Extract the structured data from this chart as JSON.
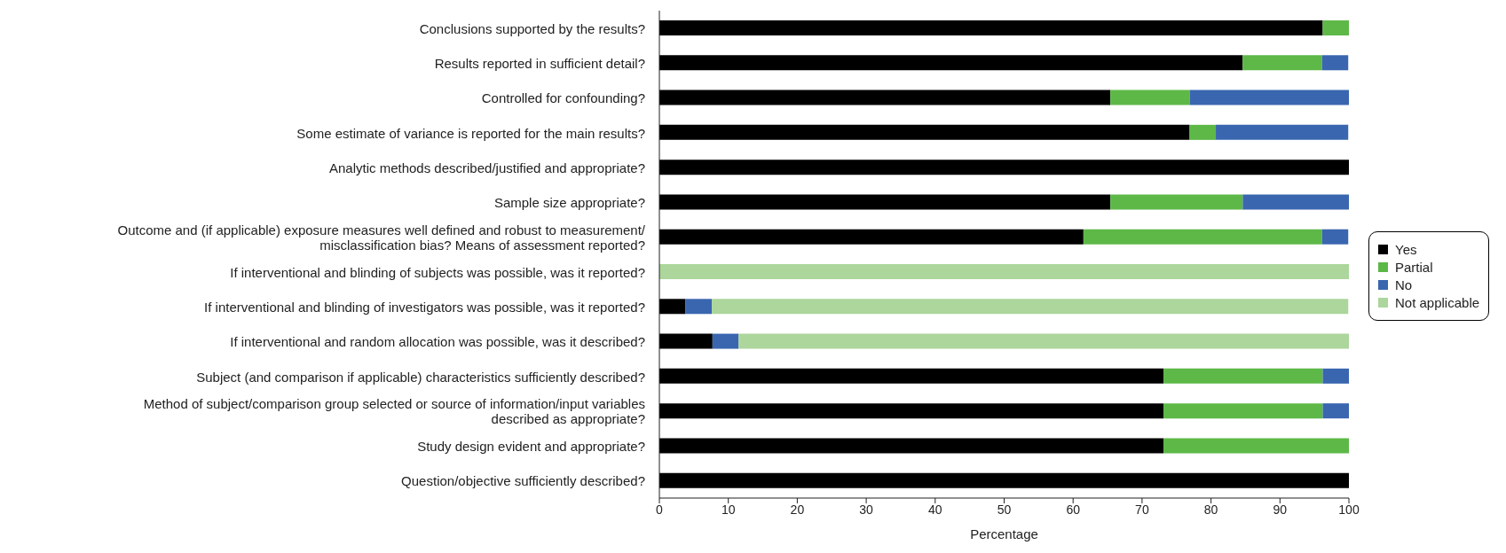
{
  "chart_data": {
    "type": "bar",
    "orientation": "horizontal",
    "stacked": true,
    "xlabel": "Percentage",
    "categories": [
      "Conclusions supported by the results?",
      "Results reported in sufficient detail?",
      "Controlled for confounding?",
      "Some estimate of variance is reported for the main results?",
      "Analytic methods described/justified and appropriate?",
      "Sample size appropriate?",
      "Outcome and (if applicable) exposure measures well defined and robust to measurement/misclassification bias? Means of assessment reported?",
      "If interventional and blinding of subjects was possible, was it reported?",
      "If interventional and blinding of investigators was possible, was it reported?",
      "If interventional and random allocation was possible, was it described?",
      "Subject (and comparison if applicable) characteristics sufficiently described?",
      "Method of subject/comparison group selected or source of information/input variables described as appropriate?",
      "Study design evident and appropriate?",
      "Question/objective sufficiently described?"
    ],
    "series": [
      {
        "name": "Yes",
        "color": "#000000",
        "values": [
          96.2,
          84.6,
          65.4,
          76.9,
          100,
          65.4,
          61.5,
          0,
          3.8,
          7.7,
          73.1,
          73.1,
          73.1,
          100
        ]
      },
      {
        "name": "Partial",
        "color": "#5db847",
        "values": [
          3.8,
          11.5,
          11.5,
          3.8,
          0,
          19.2,
          34.6,
          0,
          0,
          0,
          23.1,
          23.1,
          26.9,
          0
        ]
      },
      {
        "name": "No",
        "color": "#3a66b0",
        "values": [
          0,
          3.8,
          23.1,
          19.2,
          0,
          15.4,
          3.8,
          0,
          3.8,
          3.8,
          3.8,
          3.8,
          0,
          0
        ]
      },
      {
        "name": "Not applicable",
        "color": "#acd69c",
        "values": [
          0,
          0,
          0,
          0,
          0,
          0,
          0,
          100,
          92.3,
          88.5,
          0,
          0,
          0,
          0
        ]
      }
    ],
    "xlim": [
      0,
      100
    ],
    "xticks": [
      0,
      10,
      20,
      30,
      40,
      50,
      60,
      70,
      80,
      90,
      100
    ],
    "grid": false,
    "legend": "right"
  }
}
